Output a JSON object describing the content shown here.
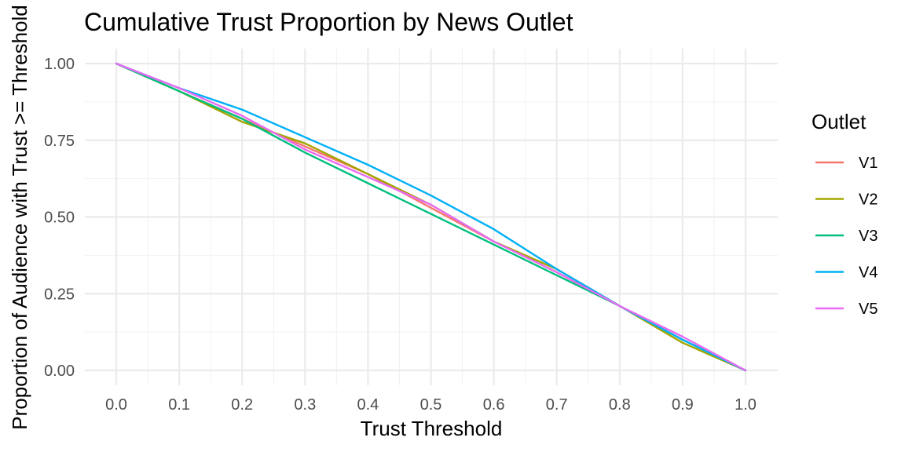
{
  "chart_data": {
    "type": "line",
    "title": "Cumulative Trust Proportion by News Outlet",
    "xlabel": "Trust Threshold",
    "ylabel": "Proportion of Audience with Trust >= Threshold",
    "xlim": [
      0,
      1
    ],
    "ylim": [
      0,
      1
    ],
    "x_ticks": [
      "0.0",
      "0.1",
      "0.2",
      "0.3",
      "0.4",
      "0.5",
      "0.6",
      "0.7",
      "0.8",
      "0.9",
      "1.0"
    ],
    "y_ticks": [
      "0.00",
      "0.25",
      "0.50",
      "0.75",
      "1.00"
    ],
    "grid": true,
    "legend_position": "right",
    "legend_title": "Outlet",
    "x": [
      0.0,
      0.1,
      0.2,
      0.3,
      0.4,
      0.5,
      0.6,
      0.7,
      0.8,
      0.9,
      1.0
    ],
    "series": [
      {
        "name": "V1",
        "color": "#F8766D",
        "values": [
          1.0,
          0.91,
          0.82,
          0.73,
          0.64,
          0.53,
          0.42,
          0.32,
          0.21,
          0.1,
          0.0
        ]
      },
      {
        "name": "V2",
        "color": "#A3A500",
        "values": [
          1.0,
          0.91,
          0.81,
          0.74,
          0.64,
          0.54,
          0.42,
          0.33,
          0.21,
          0.09,
          0.0
        ]
      },
      {
        "name": "V3",
        "color": "#00BF7D",
        "values": [
          1.0,
          0.91,
          0.82,
          0.71,
          0.61,
          0.51,
          0.41,
          0.31,
          0.21,
          0.1,
          0.0
        ]
      },
      {
        "name": "V4",
        "color": "#00B0F6",
        "values": [
          1.0,
          0.92,
          0.85,
          0.76,
          0.67,
          0.57,
          0.46,
          0.33,
          0.21,
          0.1,
          0.0
        ]
      },
      {
        "name": "V5",
        "color": "#E76BF3",
        "values": [
          1.0,
          0.92,
          0.83,
          0.72,
          0.63,
          0.54,
          0.42,
          0.32,
          0.21,
          0.11,
          0.0
        ]
      }
    ]
  }
}
